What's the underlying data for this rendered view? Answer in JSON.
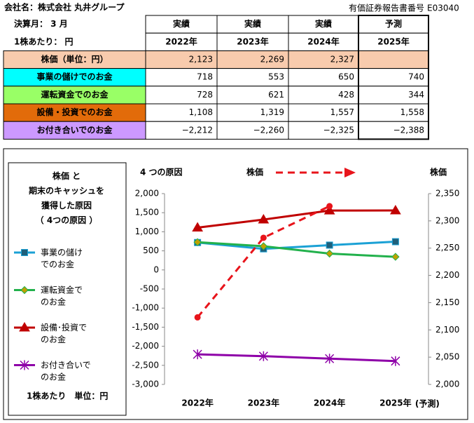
{
  "header": {
    "company": "会社名：株式会社 丸井グループ",
    "report_label": "有価証券報告書番号",
    "report_no": "E03040"
  },
  "table": {
    "header_rows": [
      [
        "決算月：  3  月",
        "実績",
        "実績",
        "実績",
        "予測"
      ],
      [
        "1株あたり：  円",
        "2022年",
        "2023年",
        "2024年",
        "2025年"
      ]
    ],
    "rows": [
      [
        "株価（単位：円）",
        "2,123",
        "2,269",
        "2,327"
      ],
      [
        "事業の儲けでのお金",
        "718",
        "553",
        "650",
        "740"
      ],
      [
        "運転資金でのお金",
        "728",
        "621",
        "428",
        "344"
      ],
      [
        "設備・投資でのお金",
        "1,108",
        "1,319",
        "1,557",
        "1,558"
      ],
      [
        "お付き合いでのお金",
        "−2,212",
        "−2,260",
        "−2,325",
        "−2,388"
      ]
    ]
  },
  "chart_data": {
    "type": "line",
    "description": "株価 と\n期末のキャッシュを\n獲得した原因\n（ 4つの原因 ）",
    "subtitle": "4 つの原因",
    "y2_legend": "株価",
    "y2_label": "株価",
    "note": "1株あたり　単位：円",
    "annotation": "(予測)",
    "categories": [
      "2022年",
      "2023年",
      "2024年",
      "2025年"
    ],
    "series": [
      {
        "name": "事業の儲け\nでのお金",
        "color": "#1ba1d5",
        "marker": "square",
        "values": [
          718,
          553,
          650,
          740
        ]
      },
      {
        "name": "運転資金で\nのお金",
        "color": "#22b14c",
        "marker": "diamond",
        "values": [
          728,
          621,
          428,
          344
        ]
      },
      {
        "name": "設備･投資で\nのお金",
        "color": "#c00000",
        "marker": "triangle",
        "values": [
          1108,
          1319,
          1557,
          1558
        ]
      },
      {
        "name": "お付き合いで\nのお金",
        "color": "#8e00a8",
        "marker": "star",
        "values": [
          -2212,
          -2260,
          -2325,
          -2388
        ]
      },
      {
        "name": "株価",
        "color": "#e8141b",
        "marker": "circle",
        "dash": true,
        "axis": "y2",
        "values": [
          2123,
          2269,
          2327,
          null
        ]
      }
    ],
    "ylim": [
      -3000,
      2000
    ],
    "yticks": [
      {
        "value": -3000,
        "label": "-3,000"
      },
      {
        "value": -2500,
        "label": "-2,500"
      },
      {
        "value": -2000,
        "label": "-2,000"
      },
      {
        "value": -1500,
        "label": "-1,500"
      },
      {
        "value": -1000,
        "label": "-1,000"
      },
      -500,
      0,
      500,
      {
        "value": 1000,
        "label": "1,000"
      },
      {
        "value": 1500,
        "label": "1,500"
      },
      {
        "value": 2000,
        "label": "2,000"
      }
    ],
    "y2lim": [
      2000,
      2350
    ],
    "y2ticks": [
      {
        "value": 2000,
        "label": "2,000"
      },
      {
        "value": 2050,
        "label": "2,050"
      },
      {
        "value": 2100,
        "label": "2,100"
      },
      {
        "value": 2150,
        "label": "2,150"
      },
      {
        "value": 2200,
        "label": "2,200"
      },
      {
        "value": 2250,
        "label": "2,250"
      },
      {
        "value": 2300,
        "label": "2,300"
      },
      {
        "value": 2350,
        "label": "2,350"
      }
    ]
  }
}
